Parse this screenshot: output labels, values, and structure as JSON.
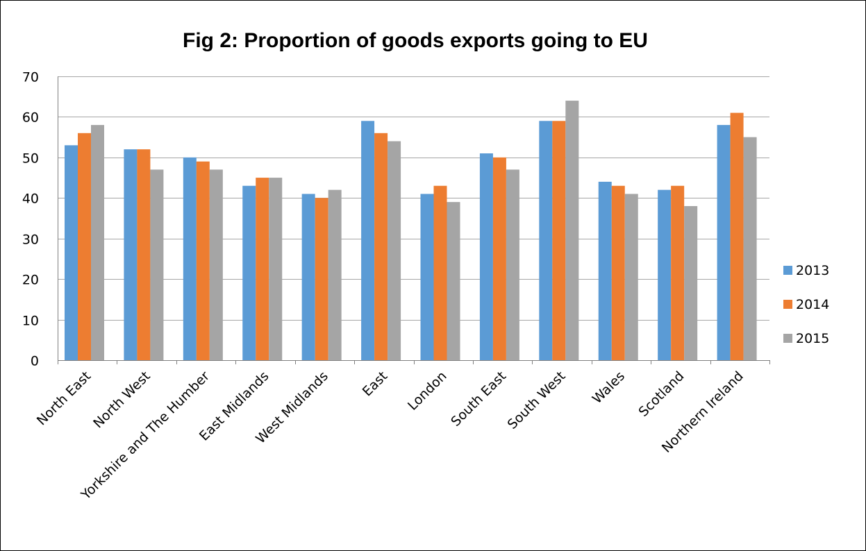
{
  "chart_data": {
    "type": "bar",
    "title": "Fig 2: Proportion of goods exports going to EU",
    "xlabel": "",
    "ylabel": "",
    "ylim": [
      0,
      70
    ],
    "yticks": [
      0,
      10,
      20,
      30,
      40,
      50,
      60,
      70
    ],
    "grid": true,
    "legend_position": "right",
    "categories": [
      "North East",
      "North West",
      "Yorkshire and The Humber",
      "East Midlands",
      "West Midlands",
      "East",
      "London",
      "South East",
      "South West",
      "Wales",
      "Scotland",
      "Northern Ireland"
    ],
    "series": [
      {
        "name": "2013",
        "color": "#5B9BD5",
        "values": [
          53,
          52,
          50,
          43,
          41,
          59,
          41,
          51,
          59,
          44,
          42,
          58
        ]
      },
      {
        "name": "2014",
        "color": "#ED7D31",
        "values": [
          56,
          52,
          49,
          45,
          40,
          56,
          43,
          50,
          59,
          43,
          43,
          61
        ]
      },
      {
        "name": "2015",
        "color": "#A5A5A5",
        "values": [
          58,
          47,
          47,
          45,
          42,
          54,
          39,
          47,
          64,
          41,
          38,
          55
        ]
      }
    ]
  }
}
